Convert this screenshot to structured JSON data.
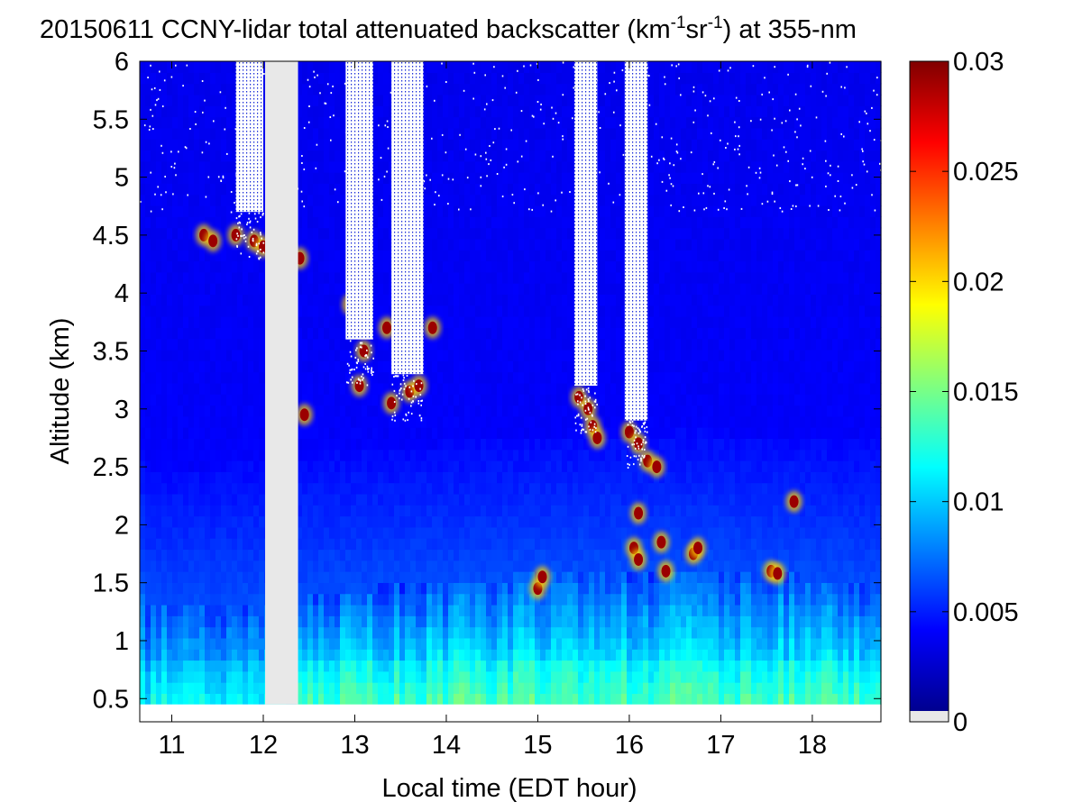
{
  "chart_data": {
    "type": "heatmap",
    "title_parts": [
      "20150611 CCNY-lidar total attenuated backscatter (km",
      "-1",
      "sr",
      "-1",
      ") at 355-nm"
    ],
    "xlabel": "Local time (EDT hour)",
    "ylabel": "Altitude (km)",
    "xlim": [
      10.65,
      18.75
    ],
    "ylim": [
      0.3,
      6
    ],
    "xticks": [
      "11",
      "12",
      "13",
      "14",
      "15",
      "16",
      "17",
      "18"
    ],
    "yticks": [
      "0.5",
      "1",
      "1.5",
      "2",
      "2.5",
      "3",
      "3.5",
      "4",
      "4.5",
      "5",
      "5.5",
      "6"
    ],
    "data_altitude_range": [
      0.45,
      6
    ],
    "no_data_time_range": [
      12.02,
      12.38
    ],
    "colorbar": {
      "range": [
        0,
        0.03
      ],
      "ticks": [
        "0",
        "0.005",
        "0.01",
        "0.015",
        "0.02",
        "0.025",
        "0.03"
      ],
      "colormap": "jet"
    },
    "boundary_layer": [
      {
        "time": 10.7,
        "top_km": 1.3
      },
      {
        "time": 11.5,
        "top_km": 1.3
      },
      {
        "time": 12.4,
        "top_km": 1.4
      },
      {
        "time": 14.0,
        "top_km": 1.5
      },
      {
        "time": 15.5,
        "top_km": 1.6
      },
      {
        "time": 17.0,
        "top_km": 1.6
      },
      {
        "time": 18.7,
        "top_km": 1.5
      }
    ],
    "cloud_features": [
      {
        "time": 11.35,
        "alt_km": 4.5
      },
      {
        "time": 11.45,
        "alt_km": 4.45
      },
      {
        "time": 11.7,
        "alt_km": 4.5
      },
      {
        "time": 11.9,
        "alt_km": 4.45
      },
      {
        "time": 12.0,
        "alt_km": 4.4
      },
      {
        "time": 12.4,
        "alt_km": 4.3
      },
      {
        "time": 12.45,
        "alt_km": 2.95
      },
      {
        "time": 12.95,
        "alt_km": 3.9
      },
      {
        "time": 13.05,
        "alt_km": 3.2
      },
      {
        "time": 13.1,
        "alt_km": 3.5
      },
      {
        "time": 13.35,
        "alt_km": 3.7
      },
      {
        "time": 13.4,
        "alt_km": 3.05
      },
      {
        "time": 13.6,
        "alt_km": 3.15
      },
      {
        "time": 13.7,
        "alt_km": 3.2
      },
      {
        "time": 13.85,
        "alt_km": 3.7
      },
      {
        "time": 15.0,
        "alt_km": 1.45
      },
      {
        "time": 15.05,
        "alt_km": 1.55
      },
      {
        "time": 15.45,
        "alt_km": 3.1
      },
      {
        "time": 15.55,
        "alt_km": 3.0
      },
      {
        "time": 15.6,
        "alt_km": 2.85
      },
      {
        "time": 15.65,
        "alt_km": 2.75
      },
      {
        "time": 16.0,
        "alt_km": 2.8
      },
      {
        "time": 16.1,
        "alt_km": 2.7
      },
      {
        "time": 16.2,
        "alt_km": 2.55
      },
      {
        "time": 16.3,
        "alt_km": 2.5
      },
      {
        "time": 16.1,
        "alt_km": 2.1
      },
      {
        "time": 16.05,
        "alt_km": 1.8
      },
      {
        "time": 16.1,
        "alt_km": 1.7
      },
      {
        "time": 16.35,
        "alt_km": 1.85
      },
      {
        "time": 16.4,
        "alt_km": 1.6
      },
      {
        "time": 16.7,
        "alt_km": 1.75
      },
      {
        "time": 16.75,
        "alt_km": 1.8
      },
      {
        "time": 17.55,
        "alt_km": 1.6
      },
      {
        "time": 17.62,
        "alt_km": 1.58
      },
      {
        "time": 17.8,
        "alt_km": 2.2
      }
    ],
    "signal_noise_columns": [
      {
        "time_start": 11.7,
        "time_end": 12.0,
        "above_km": 4.7
      },
      {
        "time_start": 12.9,
        "time_end": 13.2,
        "above_km": 3.6
      },
      {
        "time_start": 13.4,
        "time_end": 13.75,
        "above_km": 3.3
      },
      {
        "time_start": 15.4,
        "time_end": 15.65,
        "above_km": 3.2
      },
      {
        "time_start": 15.95,
        "time_end": 16.2,
        "above_km": 2.9
      }
    ]
  }
}
